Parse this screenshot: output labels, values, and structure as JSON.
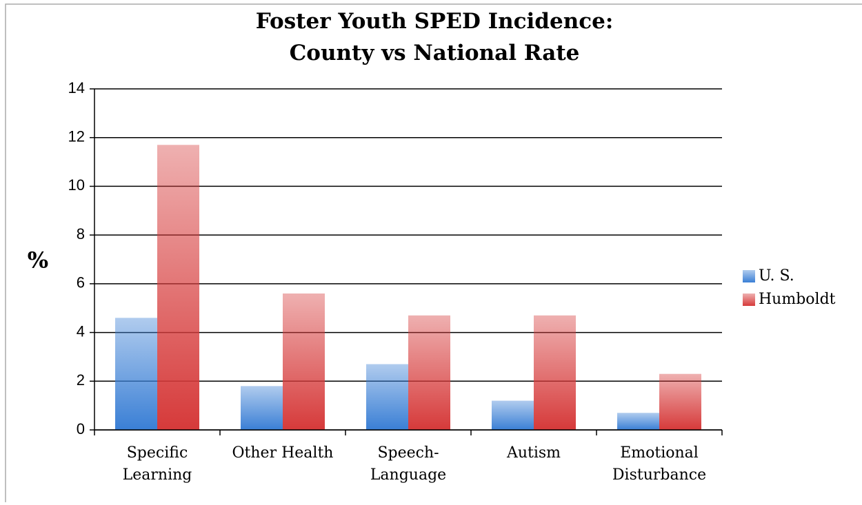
{
  "chart_data": {
    "type": "bar",
    "title": "Foster Youth SPED Incidence:\nCounty vs National Rate",
    "y_label": "%",
    "categories": [
      "Specific\nLearning",
      "Other Health",
      "Speech-\nLanguage",
      "Autism",
      "Emotional\nDisturbance"
    ],
    "series": [
      {
        "name": "U. S.",
        "color": "#3a7fd5",
        "values": [
          4.6,
          1.8,
          2.7,
          1.2,
          0.7
        ]
      },
      {
        "name": "Humboldt",
        "color": "#d63a3a",
        "values": [
          11.7,
          5.6,
          4.7,
          4.7,
          2.3
        ]
      }
    ],
    "ylim": [
      0,
      14
    ],
    "yticks": [
      0,
      2,
      4,
      6,
      8,
      10,
      12,
      14
    ],
    "grid": true,
    "legend": "right"
  }
}
